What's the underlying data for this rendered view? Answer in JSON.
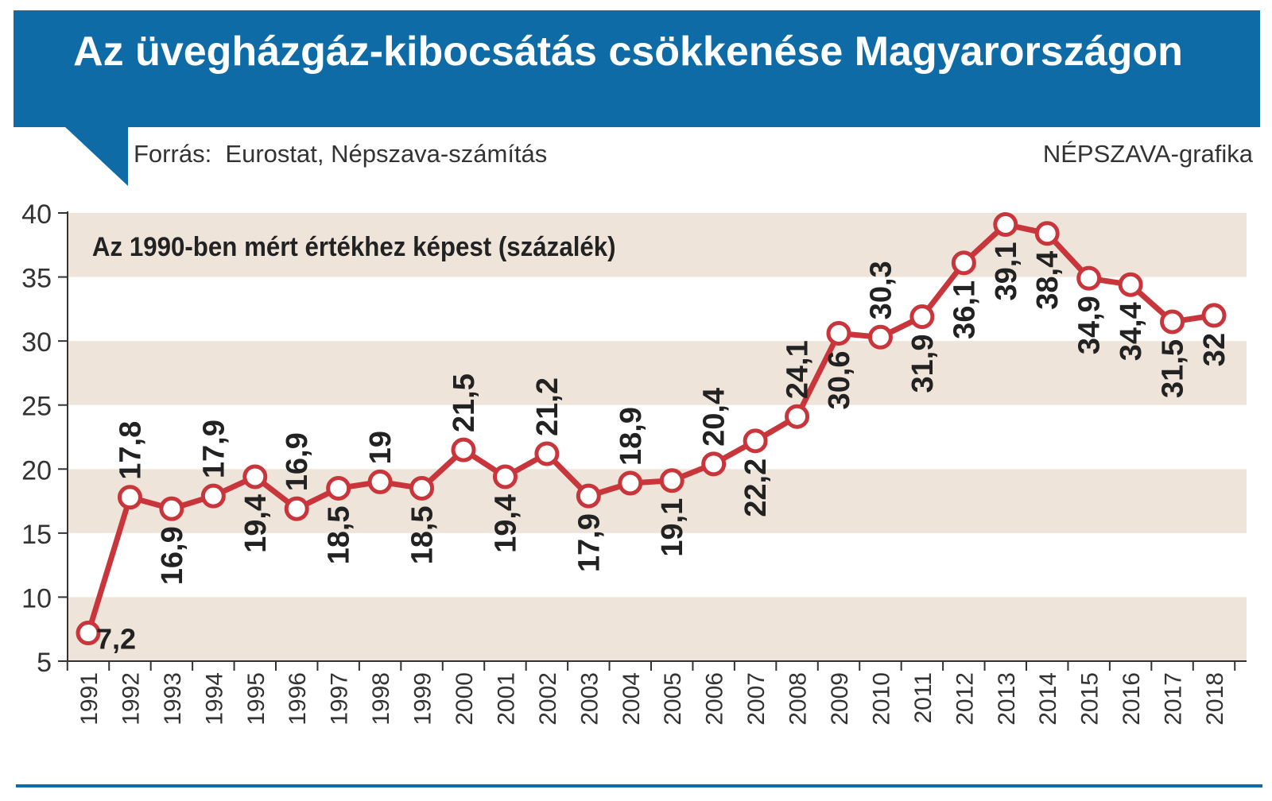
{
  "title": "Az üvegházgáz-kibocsátás csökkenése Magyarországon",
  "source": "Forrás:  Eurostat, Népszava-számítás",
  "credit": "NÉPSZAVA-grafika",
  "colors": {
    "header_bg": "#0f6ba5",
    "band": "#efe4da",
    "line": "#c8363c",
    "label": "#222222"
  },
  "chart_data": {
    "type": "line",
    "title": "Az üvegházgáz-kibocsátás csökkenése Magyarországon",
    "subtitle": "Az 1990-ben mért értékhez képest (százalék)",
    "xlabel": "",
    "ylabel": "",
    "ylim": [
      5,
      40
    ],
    "yticks": [
      5,
      10,
      15,
      20,
      25,
      30,
      35,
      40
    ],
    "grid": "horizontal bands",
    "categories": [
      "1991",
      "1992",
      "1993",
      "1994",
      "1995",
      "1996",
      "1997",
      "1998",
      "1999",
      "2000",
      "2001",
      "2002",
      "2003",
      "2004",
      "2005",
      "2006",
      "2007",
      "2008",
      "2009",
      "2010",
      "2011",
      "2012",
      "2013",
      "2014",
      "2015",
      "2016",
      "2017",
      "2018"
    ],
    "values": [
      7.2,
      17.8,
      16.9,
      17.9,
      19.4,
      16.9,
      18.5,
      19,
      18.5,
      21.5,
      19.4,
      21.2,
      17.9,
      18.9,
      19.1,
      20.4,
      22.2,
      24.1,
      30.6,
      30.3,
      31.9,
      36.1,
      39.1,
      38.4,
      34.9,
      34.4,
      31.5,
      32
    ],
    "labels": [
      "7,2",
      "17,8",
      "16,9",
      "17,9",
      "19,4",
      "16,9",
      "18,5",
      "19",
      "18,5",
      "21,5",
      "19,4",
      "21,2",
      "17,9",
      "18,9",
      "19,1",
      "20,4",
      "22,2",
      "24,1",
      "30,6",
      "30,3",
      "31,9",
      "36,1",
      "39,1",
      "38,4",
      "34,9",
      "34,4",
      "31,5",
      "32"
    ],
    "label_positions": [
      "right",
      "above",
      "below",
      "above",
      "below",
      "above",
      "below",
      "above",
      "below",
      "above",
      "below",
      "above",
      "below",
      "above",
      "below",
      "above",
      "below",
      "above",
      "below",
      "above",
      "below",
      "below",
      "below",
      "below",
      "below",
      "below",
      "below",
      "below"
    ]
  }
}
